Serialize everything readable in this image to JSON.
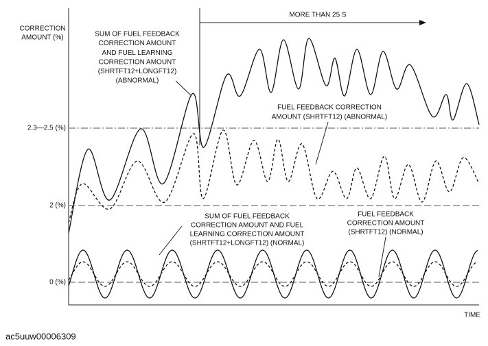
{
  "y_axis_label": [
    "CORRECTION",
    "AMOUNT (%)"
  ],
  "x_axis_label": "TIME",
  "levels": [
    "2.3—2.5 (%)",
    "2 (%)",
    "0 (%)"
  ],
  "duration_label": "MORE THAN 25 S",
  "callouts": {
    "abnormal_sum": [
      "SUM OF FUEL FEEDBACK",
      "CORRECTION AMOUNT",
      "AND FUEL LEARNING",
      "CORRECTION AMOUNT",
      "(SHRTFT12+LONGFT12)",
      "(ABNORMAL)"
    ],
    "abnormal_feedback": [
      "FUEL FEEDBACK CORRECTION",
      "AMOUNT (SHRTFT12) (ABNORMAL)"
    ],
    "normal_sum": [
      "SUM OF FUEL FEEDBACK",
      "CORRECTION AMOUNT AND FUEL",
      "LEARNING CORRECTION AMOUNT",
      "(SHRTFT12+LONGFT12) (NORMAL)"
    ],
    "normal_feedback": [
      "FUEL FEEDBACK",
      "CORRECTION AMOUNT",
      "(SHRTFT12) (NORMAL)"
    ]
  },
  "figure_id": "ac5uuw00006309"
}
